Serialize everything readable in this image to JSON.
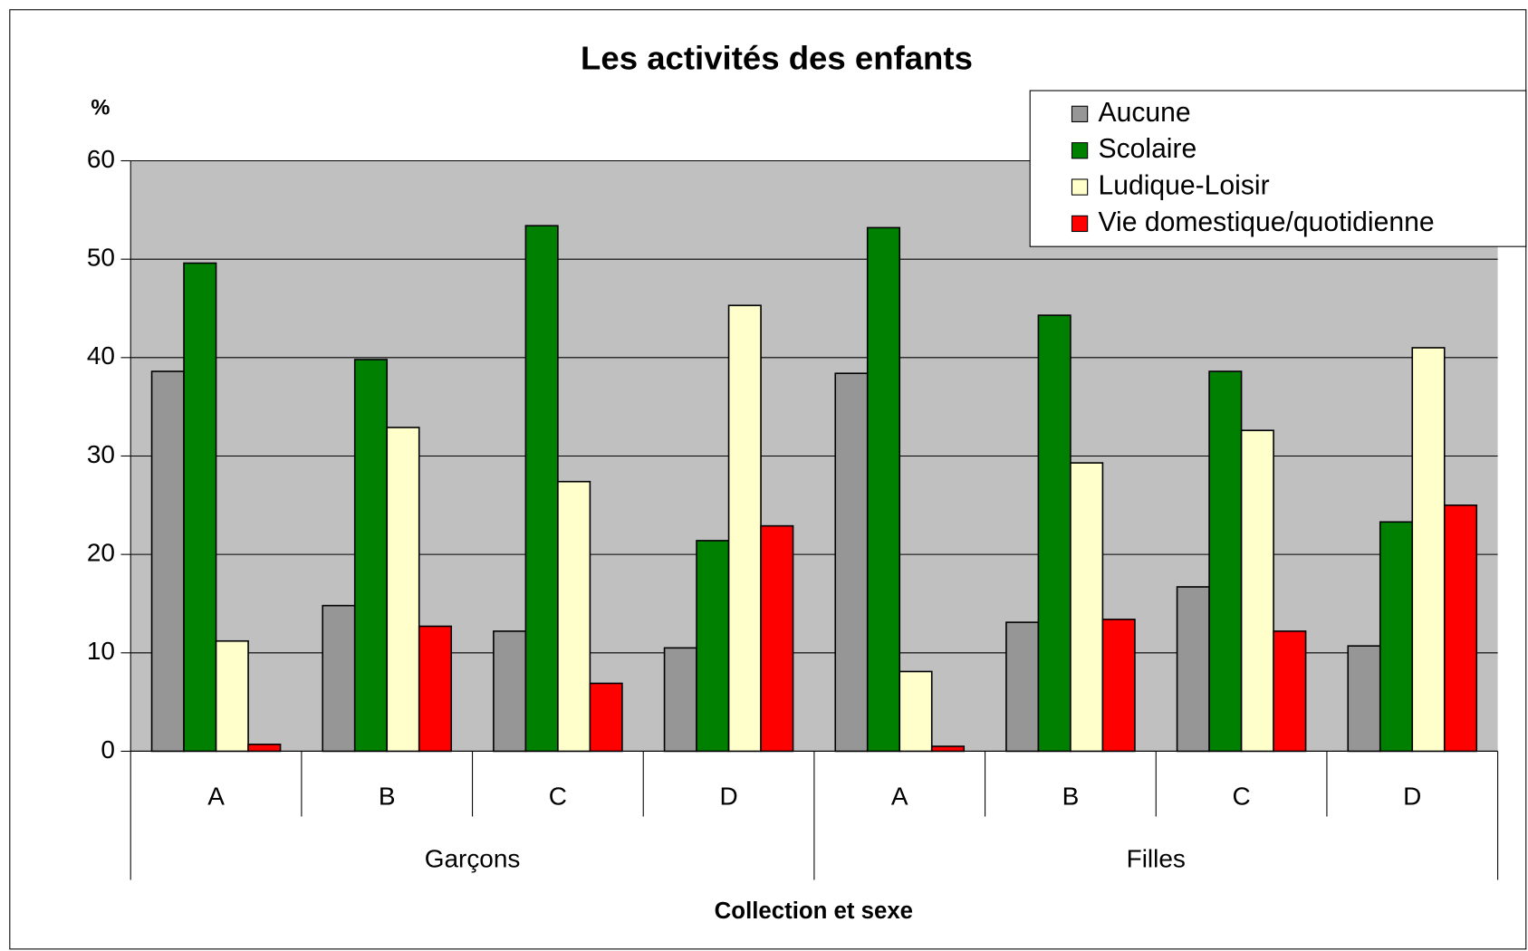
{
  "chart_data": {
    "type": "bar",
    "title": "Les activités des enfants",
    "y_label": "%",
    "x_label": "Collection et sexe",
    "categories": [
      "A",
      "B",
      "C",
      "D",
      "A",
      "B",
      "C",
      "D"
    ],
    "groups": [
      "Garçons",
      "Filles"
    ],
    "series": [
      {
        "name": "Aucune",
        "color": "#969696",
        "values": [
          38.6,
          14.8,
          12.2,
          10.5,
          38.4,
          13.1,
          16.7,
          10.7
        ]
      },
      {
        "name": "Scolaire",
        "color": "#008000",
        "values": [
          49.6,
          39.8,
          53.4,
          21.4,
          53.2,
          44.3,
          38.6,
          23.3
        ]
      },
      {
        "name": "Ludique-Loisir",
        "color": "#ffffcc",
        "values": [
          11.2,
          32.9,
          27.4,
          45.3,
          8.1,
          29.3,
          32.6,
          41.0
        ]
      },
      {
        "name": "Vie domestique/quotidienne",
        "color": "#ff0000",
        "values": [
          0.7,
          12.7,
          6.9,
          22.9,
          0.5,
          13.4,
          12.2,
          25.0
        ]
      }
    ],
    "ylim": [
      0,
      60
    ],
    "yticks": [
      0,
      10,
      20,
      30,
      40,
      50,
      60
    ],
    "grid": true,
    "legend": "top-right"
  }
}
